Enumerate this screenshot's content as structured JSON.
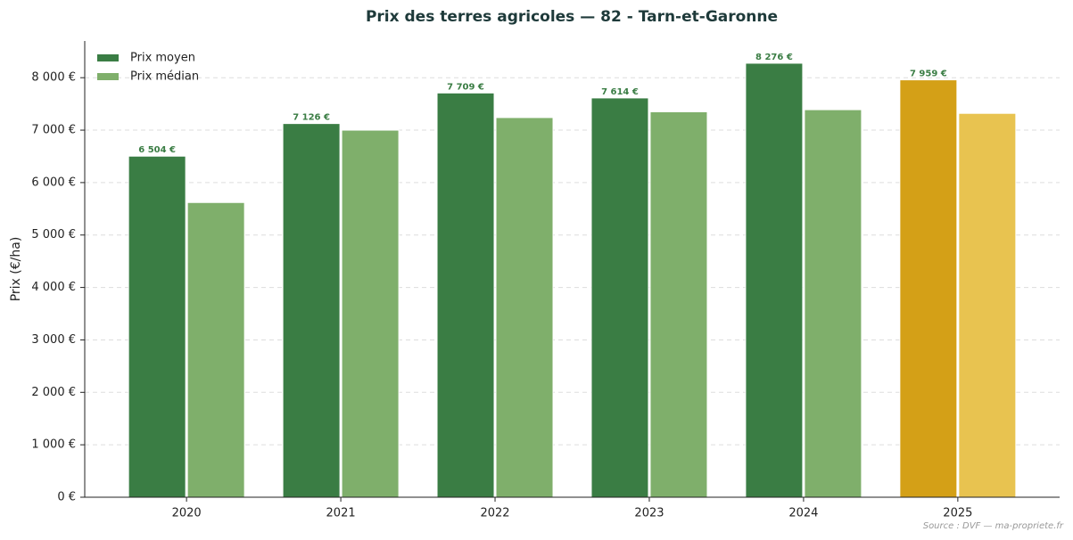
{
  "chart_data": {
    "type": "bar",
    "title": "Prix des terres agricoles — 82 - Tarn-et-Garonne",
    "y_label": "Prix (€/ha)",
    "source": "Source : DVF — ma-propriete.fr",
    "categories": [
      "2020",
      "2021",
      "2022",
      "2023",
      "2024",
      "2025"
    ],
    "series": [
      {
        "name": "Prix moyen",
        "color": "#3a7d44",
        "colors": [
          "#3a7d44",
          "#3a7d44",
          "#3a7d44",
          "#3a7d44",
          "#3a7d44",
          "#d4a017"
        ],
        "values": [
          6504,
          7126,
          7709,
          7614,
          8276,
          7959
        ],
        "value_labels": [
          "6 504 €",
          "7 126 €",
          "7 709 €",
          "7 614 €",
          "8 276 €",
          "7 959 €"
        ]
      },
      {
        "name": "Prix médian",
        "color": "#7faf6b",
        "colors": [
          "#7faf6b",
          "#7faf6b",
          "#7faf6b",
          "#7faf6b",
          "#7faf6b",
          "#e8c350"
        ],
        "values": [
          5620,
          7000,
          7240,
          7350,
          7390,
          7320
        ]
      }
    ],
    "ylim": [
      0,
      8700
    ],
    "yticks": [
      {
        "value": 0,
        "label": "0 €"
      },
      {
        "value": 1000,
        "label": "1 000 €"
      },
      {
        "value": 2000,
        "label": "2 000 €"
      },
      {
        "value": 3000,
        "label": "3 000 €"
      },
      {
        "value": 4000,
        "label": "4 000 €"
      },
      {
        "value": 5000,
        "label": "5 000 €"
      },
      {
        "value": 6000,
        "label": "6 000 €"
      },
      {
        "value": 7000,
        "label": "7 000 €"
      },
      {
        "value": 8000,
        "label": "8 000 €"
      }
    ],
    "grid": true,
    "legend": "upper-left"
  }
}
